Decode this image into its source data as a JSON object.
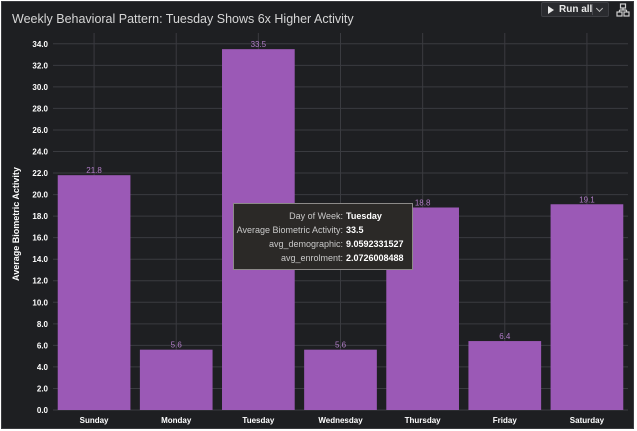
{
  "toolbar": {
    "run_all_label": "Run all",
    "run_icon": "play-icon",
    "dropdown_icon": "chevron-down-icon",
    "extra_icon": "hierarchy-icon"
  },
  "tooltip": {
    "rows": [
      {
        "key": "Day of Week:",
        "value": "Tuesday"
      },
      {
        "key": "Average Biometric Activity:",
        "value": "33.5"
      },
      {
        "key": "avg_demographic:",
        "value": "9.0592331527"
      },
      {
        "key": "avg_enrolment:",
        "value": "2.0726008488"
      }
    ]
  },
  "chart_data": {
    "type": "bar",
    "title": "Weekly Behavioral Pattern: Tuesday Shows 6x Higher Activity",
    "xlabel": "",
    "ylabel": "Average Biometric Activity",
    "categories": [
      "Sunday",
      "Monday",
      "Tuesday",
      "Wednesday",
      "Thursday",
      "Friday",
      "Saturday"
    ],
    "values": [
      21.8,
      5.6,
      33.5,
      5.6,
      18.8,
      6.4,
      19.1
    ],
    "data_labels": [
      "21.8",
      "5.6",
      "33.5",
      "5.6",
      "18.8",
      "6.4",
      "19.1"
    ],
    "ylim": [
      0,
      35
    ],
    "yticks": [
      "0.0",
      "2.0",
      "4.0",
      "6.0",
      "8.0",
      "10.0",
      "12.0",
      "14.0",
      "16.0",
      "18.0",
      "20.0",
      "22.0",
      "24.0",
      "26.0",
      "28.0",
      "30.0",
      "32.0",
      "34.0"
    ],
    "grid": true,
    "bar_color": "#9b59b6",
    "background_color": "#1e1f22",
    "grid_color": "#3a3b40"
  }
}
